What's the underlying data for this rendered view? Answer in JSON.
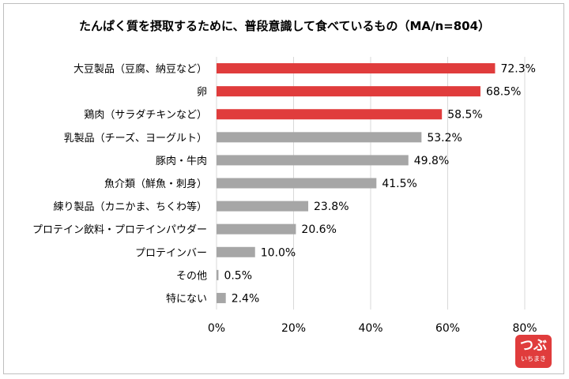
{
  "chart_data": {
    "type": "bar",
    "orientation": "horizontal",
    "title": "たんぱく質を摂取するために、普段意識して食べているもの（MA/n=804）",
    "categories": [
      "大豆製品（豆腐、納豆など）",
      "卵",
      "鶏肉（サラダチキンなど）",
      "乳製品（チーズ、ヨーグルト）",
      "豚肉・牛肉",
      "魚介類（鮮魚・刺身）",
      "練り製品（カニかま、ちくわ等）",
      "プロテイン飲料・プロテインパウダー",
      "プロテインバー",
      "その他",
      "特にない"
    ],
    "values": [
      72.3,
      68.5,
      58.5,
      53.2,
      49.8,
      41.5,
      23.8,
      20.6,
      10.0,
      0.5,
      2.4
    ],
    "value_labels": [
      "72.3%",
      "68.5%",
      "58.5%",
      "53.2%",
      "49.8%",
      "41.5%",
      "23.8%",
      "20.6%",
      "10.0%",
      "0.5%",
      "2.4%"
    ],
    "xlim": [
      0,
      80
    ],
    "xticks": [
      0,
      20,
      40,
      60,
      80
    ],
    "xtick_labels": [
      "0%",
      "20%",
      "40%",
      "60%",
      "80%"
    ],
    "grid": true,
    "colors": {
      "highlight": "#e03c3c",
      "default": "#a6a6a6",
      "grid": "#d9d9d9"
    },
    "highlight_count": 3
  },
  "logo": {
    "main": "つぶ",
    "sub": "いちまき"
  }
}
